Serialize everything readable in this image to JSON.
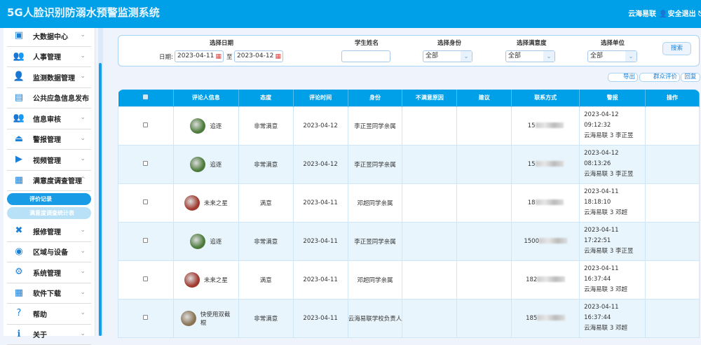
{
  "header": {
    "title": "5G人脸识别防溺水预警监测系统",
    "user": "云海易联",
    "logout": "安全退出"
  },
  "sidebar": {
    "items": [
      {
        "label": "大数据中心",
        "icon": "chart-icon",
        "chevron": "down"
      },
      {
        "label": "人事管理",
        "icon": "people-icon",
        "chevron": "down"
      },
      {
        "label": "监测数据管理",
        "icon": "user-check-icon",
        "chevron": "down"
      },
      {
        "label": "公共应急信息发布",
        "icon": "broadcast-icon",
        "chevron": ""
      },
      {
        "label": "信息审核",
        "icon": "people-icon",
        "chevron": "down"
      },
      {
        "label": "警报管理",
        "icon": "alarm-icon",
        "chevron": "down"
      },
      {
        "label": "视频管理",
        "icon": "video-icon",
        "chevron": "down"
      },
      {
        "label": "满意度调查管理",
        "icon": "grid-icon",
        "chevron": "up"
      }
    ],
    "subitems": [
      {
        "label": "评价记录",
        "active": true
      },
      {
        "label": "满意度调查统计表",
        "active": false
      }
    ],
    "items2": [
      {
        "label": "报修管理",
        "icon": "wrench-icon",
        "chevron": "down"
      },
      {
        "label": "区域与设备",
        "icon": "globe-icon",
        "chevron": "down"
      },
      {
        "label": "系统管理",
        "icon": "gear-icon",
        "chevron": "down"
      },
      {
        "label": "软件下载",
        "icon": "download-icon",
        "chevron": "down"
      },
      {
        "label": "帮助",
        "icon": "help-icon",
        "chevron": "down"
      },
      {
        "label": "关于",
        "icon": "info-icon",
        "chevron": "down"
      }
    ]
  },
  "filter": {
    "date_label": "选择日期",
    "date_prefix": "日期:",
    "date_from": "2023-04-11",
    "date_sep": "至",
    "date_to": "2023-04-12",
    "name_label": "学生姓名",
    "name_value": "",
    "identity_label": "选择身份",
    "identity_value": "全部",
    "satisfaction_label": "选择满意度",
    "satisfaction_value": "全部",
    "unit_label": "选择单位",
    "unit_value": "全部",
    "search": "搜索"
  },
  "actions": {
    "export": "导出",
    "public_eval": "群众评价",
    "reply": "回复"
  },
  "table": {
    "headers": [
      "",
      "评论人信息",
      "态度",
      "评论时间",
      "身份",
      "不满意原因",
      "建议",
      "联系方式",
      "警报",
      "操作"
    ],
    "rows": [
      {
        "name": "追逐",
        "attitude": "非常满意",
        "time": "2023-04-12",
        "identity": "李正昱同学亲属",
        "reason": "",
        "suggest": "",
        "phone": "15",
        "alarm_date": "2023-04-12",
        "alarm_time": "09:12:32",
        "alarm_info": "云海易联 3 李正昱",
        "avatar": "#4b7a3a"
      },
      {
        "name": "追逐",
        "attitude": "非常满意",
        "time": "2023-04-12",
        "identity": "李正昱同学亲属",
        "reason": "",
        "suggest": "",
        "phone": "15",
        "alarm_date": "2023-04-12",
        "alarm_time": "08:13:26",
        "alarm_info": "云海易联 3 李正昱",
        "avatar": "#4b7a3a"
      },
      {
        "name": "未来之星",
        "attitude": "满意",
        "time": "2023-04-11",
        "identity": "邓超同学亲属",
        "reason": "",
        "suggest": "",
        "phone": "18",
        "alarm_date": "2023-04-11",
        "alarm_time": "18:18:10",
        "alarm_info": "云海易联 3 邓超",
        "avatar": "#a0392e"
      },
      {
        "name": "追逐",
        "attitude": "非常满意",
        "time": "2023-04-11",
        "identity": "李正昱同学亲属",
        "reason": "",
        "suggest": "",
        "phone": "1500",
        "alarm_date": "2023-04-11",
        "alarm_time": "17:22:51",
        "alarm_info": "云海易联 3 李正昱",
        "avatar": "#4b7a3a"
      },
      {
        "name": "未来之星",
        "attitude": "满意",
        "time": "2023-04-11",
        "identity": "邓超同学亲属",
        "reason": "",
        "suggest": "",
        "phone": "182",
        "alarm_date": "2023-04-11",
        "alarm_time": "16:37:44",
        "alarm_info": "云海易联 3 邓超",
        "avatar": "#a0392e"
      },
      {
        "name": "快使用双截棍",
        "attitude": "非常满意",
        "time": "2023-04-11",
        "identity": "云海易联学校负责人",
        "reason": "",
        "suggest": "",
        "phone": "185",
        "alarm_date": "2023-04-11",
        "alarm_time": "16:37:44",
        "alarm_info": "云海易联 3 邓超",
        "avatar": "#8a7355"
      }
    ]
  },
  "colors": {
    "primary": "#00a0e9",
    "active_sub": "#1a9be6",
    "inactive_sub": "#b8e0f7"
  }
}
